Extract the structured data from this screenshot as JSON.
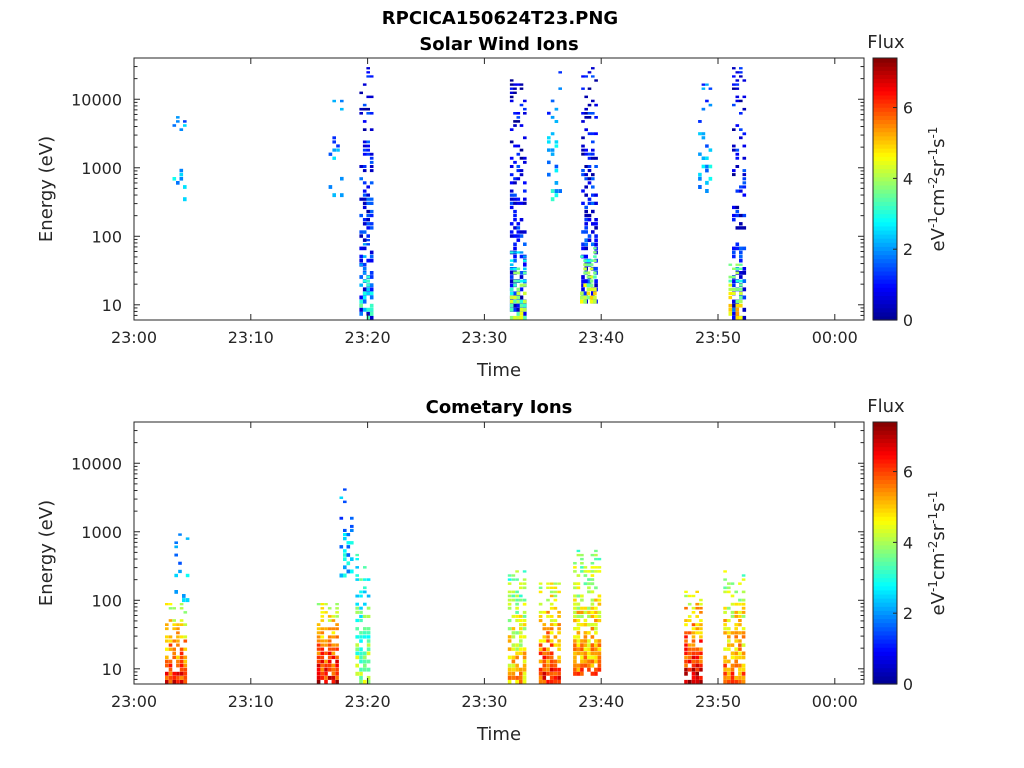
{
  "figure_title": "RPCICA150624T23.PNG",
  "colormap": [
    "#00008f",
    "#0000ff",
    "#0080ff",
    "#00ffff",
    "#80ff80",
    "#ffff00",
    "#ff8000",
    "#ff0000",
    "#800000"
  ],
  "chart_data": [
    {
      "type": "heatmap",
      "title": "Solar Wind Ions",
      "xlabel": "Time",
      "ylabel": "Energy (eV)",
      "x_ticks": [
        "23:00",
        "23:10",
        "23:20",
        "23:30",
        "23:40",
        "23:50",
        "00:00"
      ],
      "x_tick_minutes": [
        0,
        10,
        20,
        30,
        40,
        50,
        60
      ],
      "xlim_minutes": [
        0,
        62.5
      ],
      "y_scale": "log",
      "ylim": [
        6,
        40000
      ],
      "y_ticks": [
        10,
        100,
        1000,
        10000
      ],
      "y_tick_labels": [
        "10",
        "100",
        "1000",
        "10000"
      ],
      "colorbar": {
        "title": "Flux",
        "label": "eV-1cm-2sr-1s-1",
        "range": [
          0,
          7.4
        ],
        "ticks": [
          0,
          2,
          4,
          6
        ]
      },
      "bursts": [
        {
          "t": 3.9,
          "width": 1.2,
          "e_low": 300,
          "e_high": 8000,
          "flux": 2.5,
          "density": 0.25
        },
        {
          "t": 17.3,
          "width": 1.3,
          "e_low": 250,
          "e_high": 15000,
          "flux": 2.3,
          "density": 0.2
        },
        {
          "t": 19.9,
          "width": 1.2,
          "e_low": 6,
          "e_high": 32000,
          "flux": 1.2,
          "density": 0.55
        },
        {
          "t": 19.9,
          "width": 1.2,
          "e_low": 6,
          "e_high": 100,
          "flux": 3.0,
          "density": 0.6
        },
        {
          "t": 32.9,
          "width": 1.4,
          "e_low": 6,
          "e_high": 28000,
          "flux": 1.0,
          "density": 0.55
        },
        {
          "t": 32.9,
          "width": 1.4,
          "e_low": 6,
          "e_high": 60,
          "flux": 4.2,
          "density": 0.7
        },
        {
          "t": 36.0,
          "width": 1.3,
          "e_low": 300,
          "e_high": 28000,
          "flux": 2.4,
          "density": 0.3
        },
        {
          "t": 39.0,
          "width": 1.4,
          "e_low": 10,
          "e_high": 32000,
          "flux": 1.1,
          "density": 0.55
        },
        {
          "t": 38.9,
          "width": 1.4,
          "e_low": 10,
          "e_high": 70,
          "flux": 4.6,
          "density": 0.7
        },
        {
          "t": 48.9,
          "width": 1.2,
          "e_low": 400,
          "e_high": 18000,
          "flux": 2.4,
          "density": 0.3
        },
        {
          "t": 51.8,
          "width": 1.2,
          "e_low": 6,
          "e_high": 32000,
          "flux": 1.0,
          "density": 0.55
        },
        {
          "t": 51.5,
          "width": 1.2,
          "e_low": 6,
          "e_high": 40,
          "flux": 4.8,
          "density": 0.75
        }
      ]
    },
    {
      "type": "heatmap",
      "title": "Cometary Ions",
      "xlabel": "Time",
      "ylabel": "Energy (eV)",
      "x_ticks": [
        "23:00",
        "23:10",
        "23:20",
        "23:30",
        "23:40",
        "23:50",
        "00:00"
      ],
      "x_tick_minutes": [
        0,
        10,
        20,
        30,
        40,
        50,
        60
      ],
      "xlim_minutes": [
        0,
        62.5
      ],
      "y_scale": "log",
      "ylim": [
        6,
        40000
      ],
      "y_ticks": [
        10,
        100,
        1000,
        10000
      ],
      "y_tick_labels": [
        "10",
        "100",
        "1000",
        "10000"
      ],
      "colorbar": {
        "title": "Flux",
        "label": "eV-1cm-2sr-1s-1",
        "range": [
          0,
          7.4
        ],
        "ticks": [
          0,
          2,
          4,
          6
        ]
      },
      "bursts": [
        {
          "t": 3.6,
          "width": 1.9,
          "e_low": 6,
          "e_high": 90,
          "flux": 6.4,
          "density": 0.95
        },
        {
          "t": 4.1,
          "width": 1.3,
          "e_low": 90,
          "e_high": 1200,
          "flux": 2.6,
          "density": 0.25
        },
        {
          "t": 16.6,
          "width": 1.9,
          "e_low": 6,
          "e_high": 100,
          "flux": 6.6,
          "density": 0.95
        },
        {
          "t": 18.2,
          "width": 1.2,
          "e_low": 200,
          "e_high": 4500,
          "flux": 2.6,
          "density": 0.3
        },
        {
          "t": 19.6,
          "width": 1.3,
          "e_low": 6,
          "e_high": 500,
          "flux": 4.0,
          "density": 0.75
        },
        {
          "t": 32.8,
          "width": 1.6,
          "e_low": 6,
          "e_high": 300,
          "flux": 5.2,
          "density": 0.85
        },
        {
          "t": 35.6,
          "width": 1.9,
          "e_low": 6,
          "e_high": 200,
          "flux": 6.3,
          "density": 0.9
        },
        {
          "t": 38.8,
          "width": 2.4,
          "e_low": 8,
          "e_high": 600,
          "flux": 5.6,
          "density": 0.85
        },
        {
          "t": 47.9,
          "width": 1.6,
          "e_low": 6,
          "e_high": 150,
          "flux": 6.8,
          "density": 0.9
        },
        {
          "t": 51.4,
          "width": 1.9,
          "e_low": 6,
          "e_high": 300,
          "flux": 5.8,
          "density": 0.85
        }
      ]
    }
  ]
}
